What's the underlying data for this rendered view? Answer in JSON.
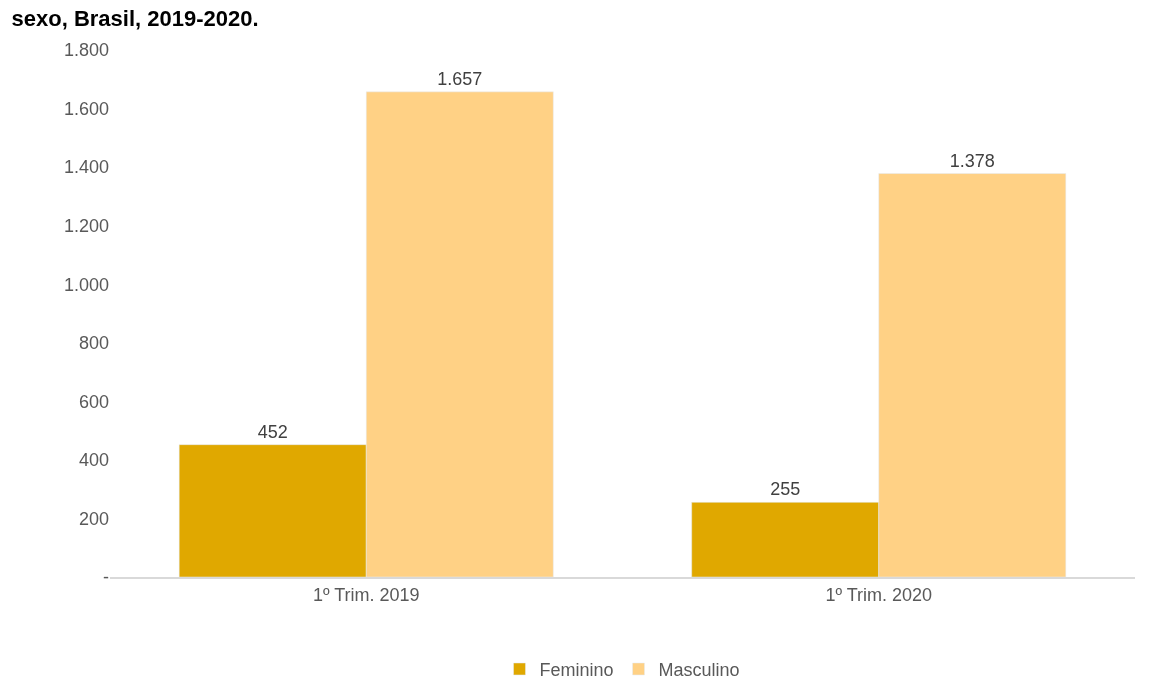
{
  "chart_data": {
    "type": "bar",
    "title": "sexo, Brasil, 2019-2020.",
    "categories": [
      "1º Trim. 2019",
      "1º Trim. 2020"
    ],
    "series": [
      {
        "name": "Feminino",
        "color": "#e0a800",
        "values": [
          452,
          255
        ],
        "value_labels": [
          "452",
          "255"
        ]
      },
      {
        "name": "Masculino",
        "color": "#ffd185",
        "values": [
          1657,
          1378
        ],
        "value_labels": [
          "1.657",
          "1.378"
        ]
      }
    ],
    "ylim": [
      0,
      1800
    ],
    "yticks": [
      {
        "value": 0,
        "label": "-"
      },
      {
        "value": 200,
        "label": "200"
      },
      {
        "value": 400,
        "label": "400"
      },
      {
        "value": 600,
        "label": "600"
      },
      {
        "value": 800,
        "label": "800"
      },
      {
        "value": 1000,
        "label": "1.000"
      },
      {
        "value": 1200,
        "label": "1.200"
      },
      {
        "value": 1400,
        "label": "1.400"
      },
      {
        "value": 1600,
        "label": "1.600"
      },
      {
        "value": 1800,
        "label": "1.800"
      }
    ],
    "grid": false,
    "legend": "bottom"
  }
}
